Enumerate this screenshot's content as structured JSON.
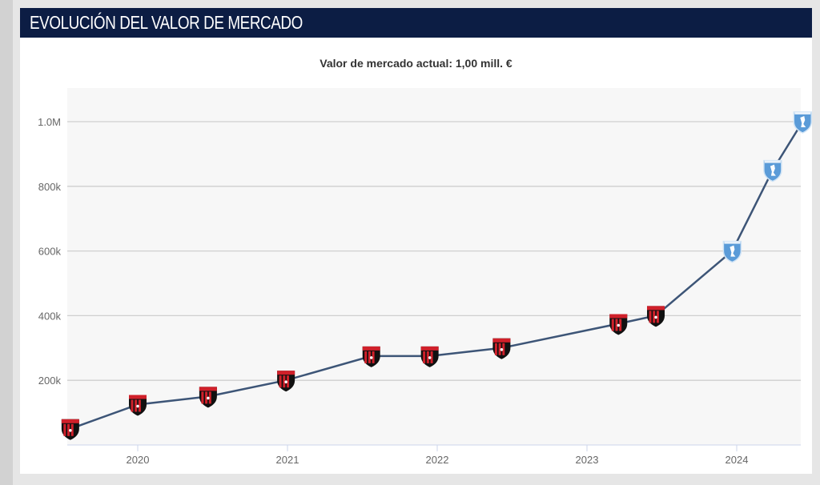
{
  "header": {
    "title": "EVOLUCIÓN DEL VALOR DE MERCADO"
  },
  "chart_data": {
    "type": "line",
    "title": "Valor de mercado actual: 1,00 mill. €",
    "xlabel": "",
    "ylabel": "",
    "x_ticks": [
      "2020",
      "2021",
      "2022",
      "2023",
      "2024"
    ],
    "y_ticks": [
      {
        "value": 200000,
        "label": "200k"
      },
      {
        "value": 400000,
        "label": "400k"
      },
      {
        "value": 600000,
        "label": "600k"
      },
      {
        "value": 800000,
        "label": "800k"
      },
      {
        "value": 1000000,
        "label": "1.0M"
      }
    ],
    "xlim": [
      2019.55,
      2024.45
    ],
    "ylim": [
      0,
      1100000
    ],
    "grid": true,
    "line_color": "#3d5577",
    "points": [
      {
        "x": 2019.55,
        "y": 50000,
        "club": "red-black"
      },
      {
        "x": 2020.0,
        "y": 125000,
        "club": "red-black"
      },
      {
        "x": 2020.47,
        "y": 150000,
        "club": "red-black"
      },
      {
        "x": 2020.99,
        "y": 200000,
        "club": "red-black"
      },
      {
        "x": 2021.56,
        "y": 275000,
        "club": "red-black"
      },
      {
        "x": 2021.95,
        "y": 275000,
        "club": "red-black"
      },
      {
        "x": 2022.43,
        "y": 300000,
        "club": "red-black"
      },
      {
        "x": 2023.21,
        "y": 375000,
        "club": "red-black"
      },
      {
        "x": 2023.46,
        "y": 400000,
        "club": "red-black"
      },
      {
        "x": 2023.97,
        "y": 600000,
        "club": "blue"
      },
      {
        "x": 2024.24,
        "y": 850000,
        "club": "blue"
      },
      {
        "x": 2024.44,
        "y": 1000000,
        "club": "blue"
      }
    ],
    "club_colors": {
      "red-black": [
        "#111111",
        "#d0202a"
      ],
      "blue": [
        "#5a9bd8",
        "#ffffff"
      ]
    }
  }
}
